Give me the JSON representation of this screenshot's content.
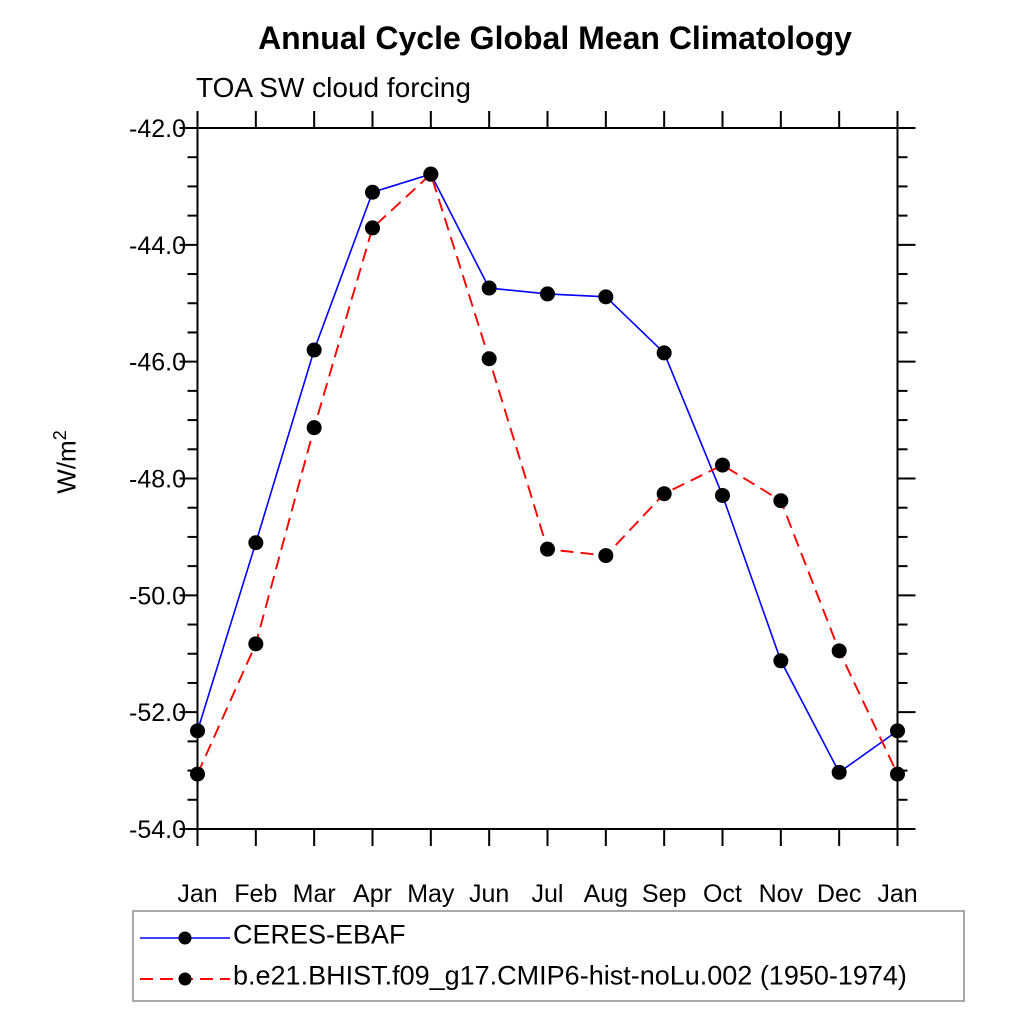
{
  "chart": {
    "title": "Annual Cycle Global Mean Climatology",
    "subtitle": "TOA SW cloud forcing",
    "ylabel_base": "W/m",
    "ylabel_exponent": "2"
  },
  "chart_data": {
    "type": "line",
    "title": "Annual Cycle Global Mean Climatology",
    "subtitle": "TOA SW cloud forcing",
    "ylabel": "W/m^2",
    "xlabel": "",
    "categories": [
      "Jan",
      "Feb",
      "Mar",
      "Apr",
      "May",
      "Jun",
      "Jul",
      "Aug",
      "Sep",
      "Oct",
      "Nov",
      "Dec",
      "Jan"
    ],
    "ylim": [
      -54.0,
      -42.0
    ],
    "ytick_major_step": 2.0,
    "ytick_minor_step": 0.5,
    "ytick_labels": [
      "-42.0",
      "-44.0",
      "-46.0",
      "-48.0",
      "-50.0",
      "-52.0",
      "-54.0"
    ],
    "grid": false,
    "legend_position": "bottom",
    "axis_color": "#000000",
    "marker_color": "#000000",
    "series": [
      {
        "name": "CERES-EBAF",
        "line_color": "#0000ff",
        "line_style": "solid",
        "marker": "filled-circle",
        "values": [
          -52.32,
          -49.1,
          -45.8,
          -43.1,
          -42.79,
          -44.74,
          -44.84,
          -44.89,
          -45.85,
          -48.29,
          -51.12,
          -53.03,
          -52.32
        ]
      },
      {
        "name": "b.e21.BHIST.f09_g17.CMIP6-hist-noLu.002 (1950-1974)",
        "line_color": "#ff0000",
        "line_style": "dashed",
        "marker": "filled-circle",
        "values": [
          -53.06,
          -50.83,
          -47.13,
          -43.71,
          -42.79,
          -45.95,
          -49.21,
          -49.32,
          -48.26,
          -47.77,
          -48.38,
          -50.95,
          -53.06
        ]
      }
    ]
  }
}
